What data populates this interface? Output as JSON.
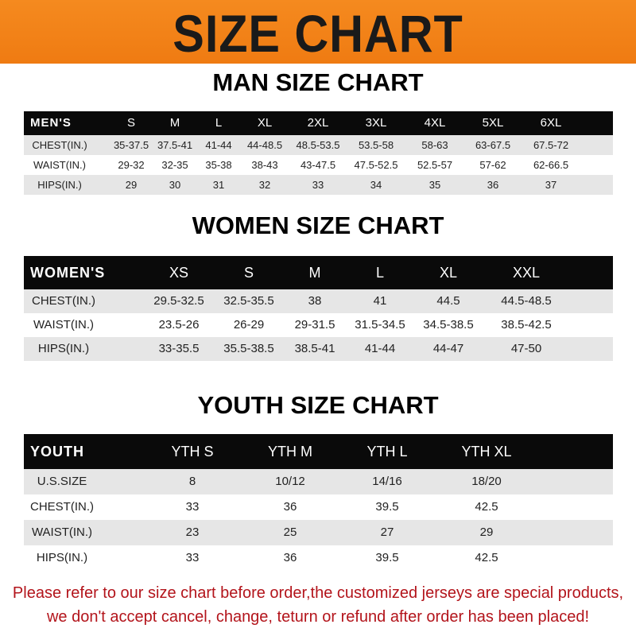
{
  "banner": {
    "title": "SIZE CHART",
    "color": "#f58a1f"
  },
  "men": {
    "title": "MAN SIZE CHART",
    "header": [
      "MEN'S",
      "S",
      "M",
      "L",
      "XL",
      "2XL",
      "3XL",
      "4XL",
      "5XL",
      "6XL"
    ],
    "rows": [
      [
        "CHEST(IN.)",
        "35-37.5",
        "37.5-41",
        "41-44",
        "44-48.5",
        "48.5-53.5",
        "53.5-58",
        "58-63",
        "63-67.5",
        "67.5-72"
      ],
      [
        "WAIST(IN.)",
        "29-32",
        "32-35",
        "35-38",
        "38-43",
        "43-47.5",
        "47.5-52.5",
        "52.5-57",
        "57-62",
        "62-66.5"
      ],
      [
        "HIPS(IN.)",
        "29",
        "30",
        "31",
        "32",
        "33",
        "34",
        "35",
        "36",
        "37"
      ]
    ]
  },
  "women": {
    "title": "WOMEN SIZE CHART",
    "header": [
      "WOMEN'S",
      "XS",
      "S",
      "M",
      "L",
      "XL",
      "XXL"
    ],
    "rows": [
      [
        "CHEST(IN.)",
        "29.5-32.5",
        "32.5-35.5",
        "38",
        "41",
        "44.5",
        "44.5-48.5"
      ],
      [
        "WAIST(IN.)",
        "23.5-26",
        "26-29",
        "29-31.5",
        "31.5-34.5",
        "34.5-38.5",
        "38.5-42.5"
      ],
      [
        "HIPS(IN.)",
        "33-35.5",
        "35.5-38.5",
        "38.5-41",
        "41-44",
        "44-47",
        "47-50"
      ]
    ]
  },
  "youth": {
    "title": "YOUTH SIZE CHART",
    "header": [
      "YOUTH",
      "YTH S",
      "YTH M",
      "YTH L",
      "YTH XL"
    ],
    "rows": [
      [
        "U.S.SIZE",
        "8",
        "10/12",
        "14/16",
        "18/20"
      ],
      [
        "CHEST(IN.)",
        "33",
        "36",
        "39.5",
        "42.5"
      ],
      [
        "WAIST(IN.)",
        "23",
        "25",
        "27",
        "29"
      ],
      [
        "HIPS(IN.)",
        "33",
        "36",
        "39.5",
        "42.5"
      ]
    ]
  },
  "note": {
    "line1": "Please refer to our size chart before order,the customized jerseys are special products,",
    "line2": "we don't accept cancel, change, teturn or refund after order has been placed!",
    "color": "#b3141b"
  }
}
